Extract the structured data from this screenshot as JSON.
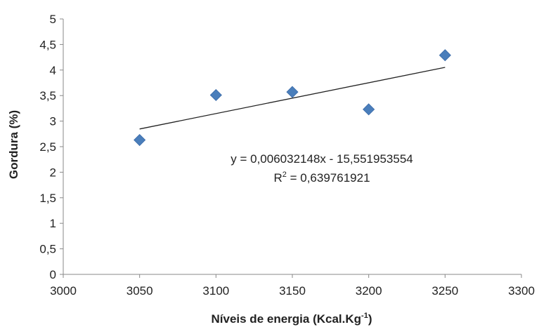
{
  "chart_data": {
    "type": "scatter",
    "title": "",
    "xlabel": "Níveis de energia (Kcal.Kg",
    "xlabel_sup": "-1",
    "xlabel_end": ")",
    "ylabel": "Gordura (%)",
    "xlim": [
      3000,
      3300
    ],
    "ylim": [
      0,
      5
    ],
    "x_ticks": [
      "3000",
      "3050",
      "3100",
      "3150",
      "3200",
      "3250",
      "3300"
    ],
    "y_ticks": [
      "0",
      "0,5",
      "1",
      "1,5",
      "2",
      "2,5",
      "3",
      "3,5",
      "4",
      "4,5",
      "5"
    ],
    "x_tick_values": [
      3000,
      3050,
      3100,
      3150,
      3200,
      3250,
      3300
    ],
    "y_tick_values": [
      0,
      0.5,
      1,
      1.5,
      2,
      2.5,
      3,
      3.5,
      4,
      4.5,
      5
    ],
    "grid": false,
    "legend": "none",
    "marker": "diamond",
    "marker_color": "#4a7ebb",
    "series": [
      {
        "points": [
          {
            "x": 3050,
            "y": 2.63
          },
          {
            "x": 3100,
            "y": 3.51
          },
          {
            "x": 3150,
            "y": 3.57
          },
          {
            "x": 3200,
            "y": 3.23
          },
          {
            "x": 3250,
            "y": 4.29
          }
        ]
      }
    ],
    "trendline": {
      "type": "linear",
      "slope": 0.006032148,
      "intercept": -15.551953554,
      "x_start": 3050,
      "x_end": 3250,
      "color": "#222222",
      "equation_label": "y = 0,006032148x - 15,551953554",
      "r2_label_prefix": "R",
      "r2_label_sup": "2",
      "r2_label_value": " = 0,639761921"
    }
  }
}
